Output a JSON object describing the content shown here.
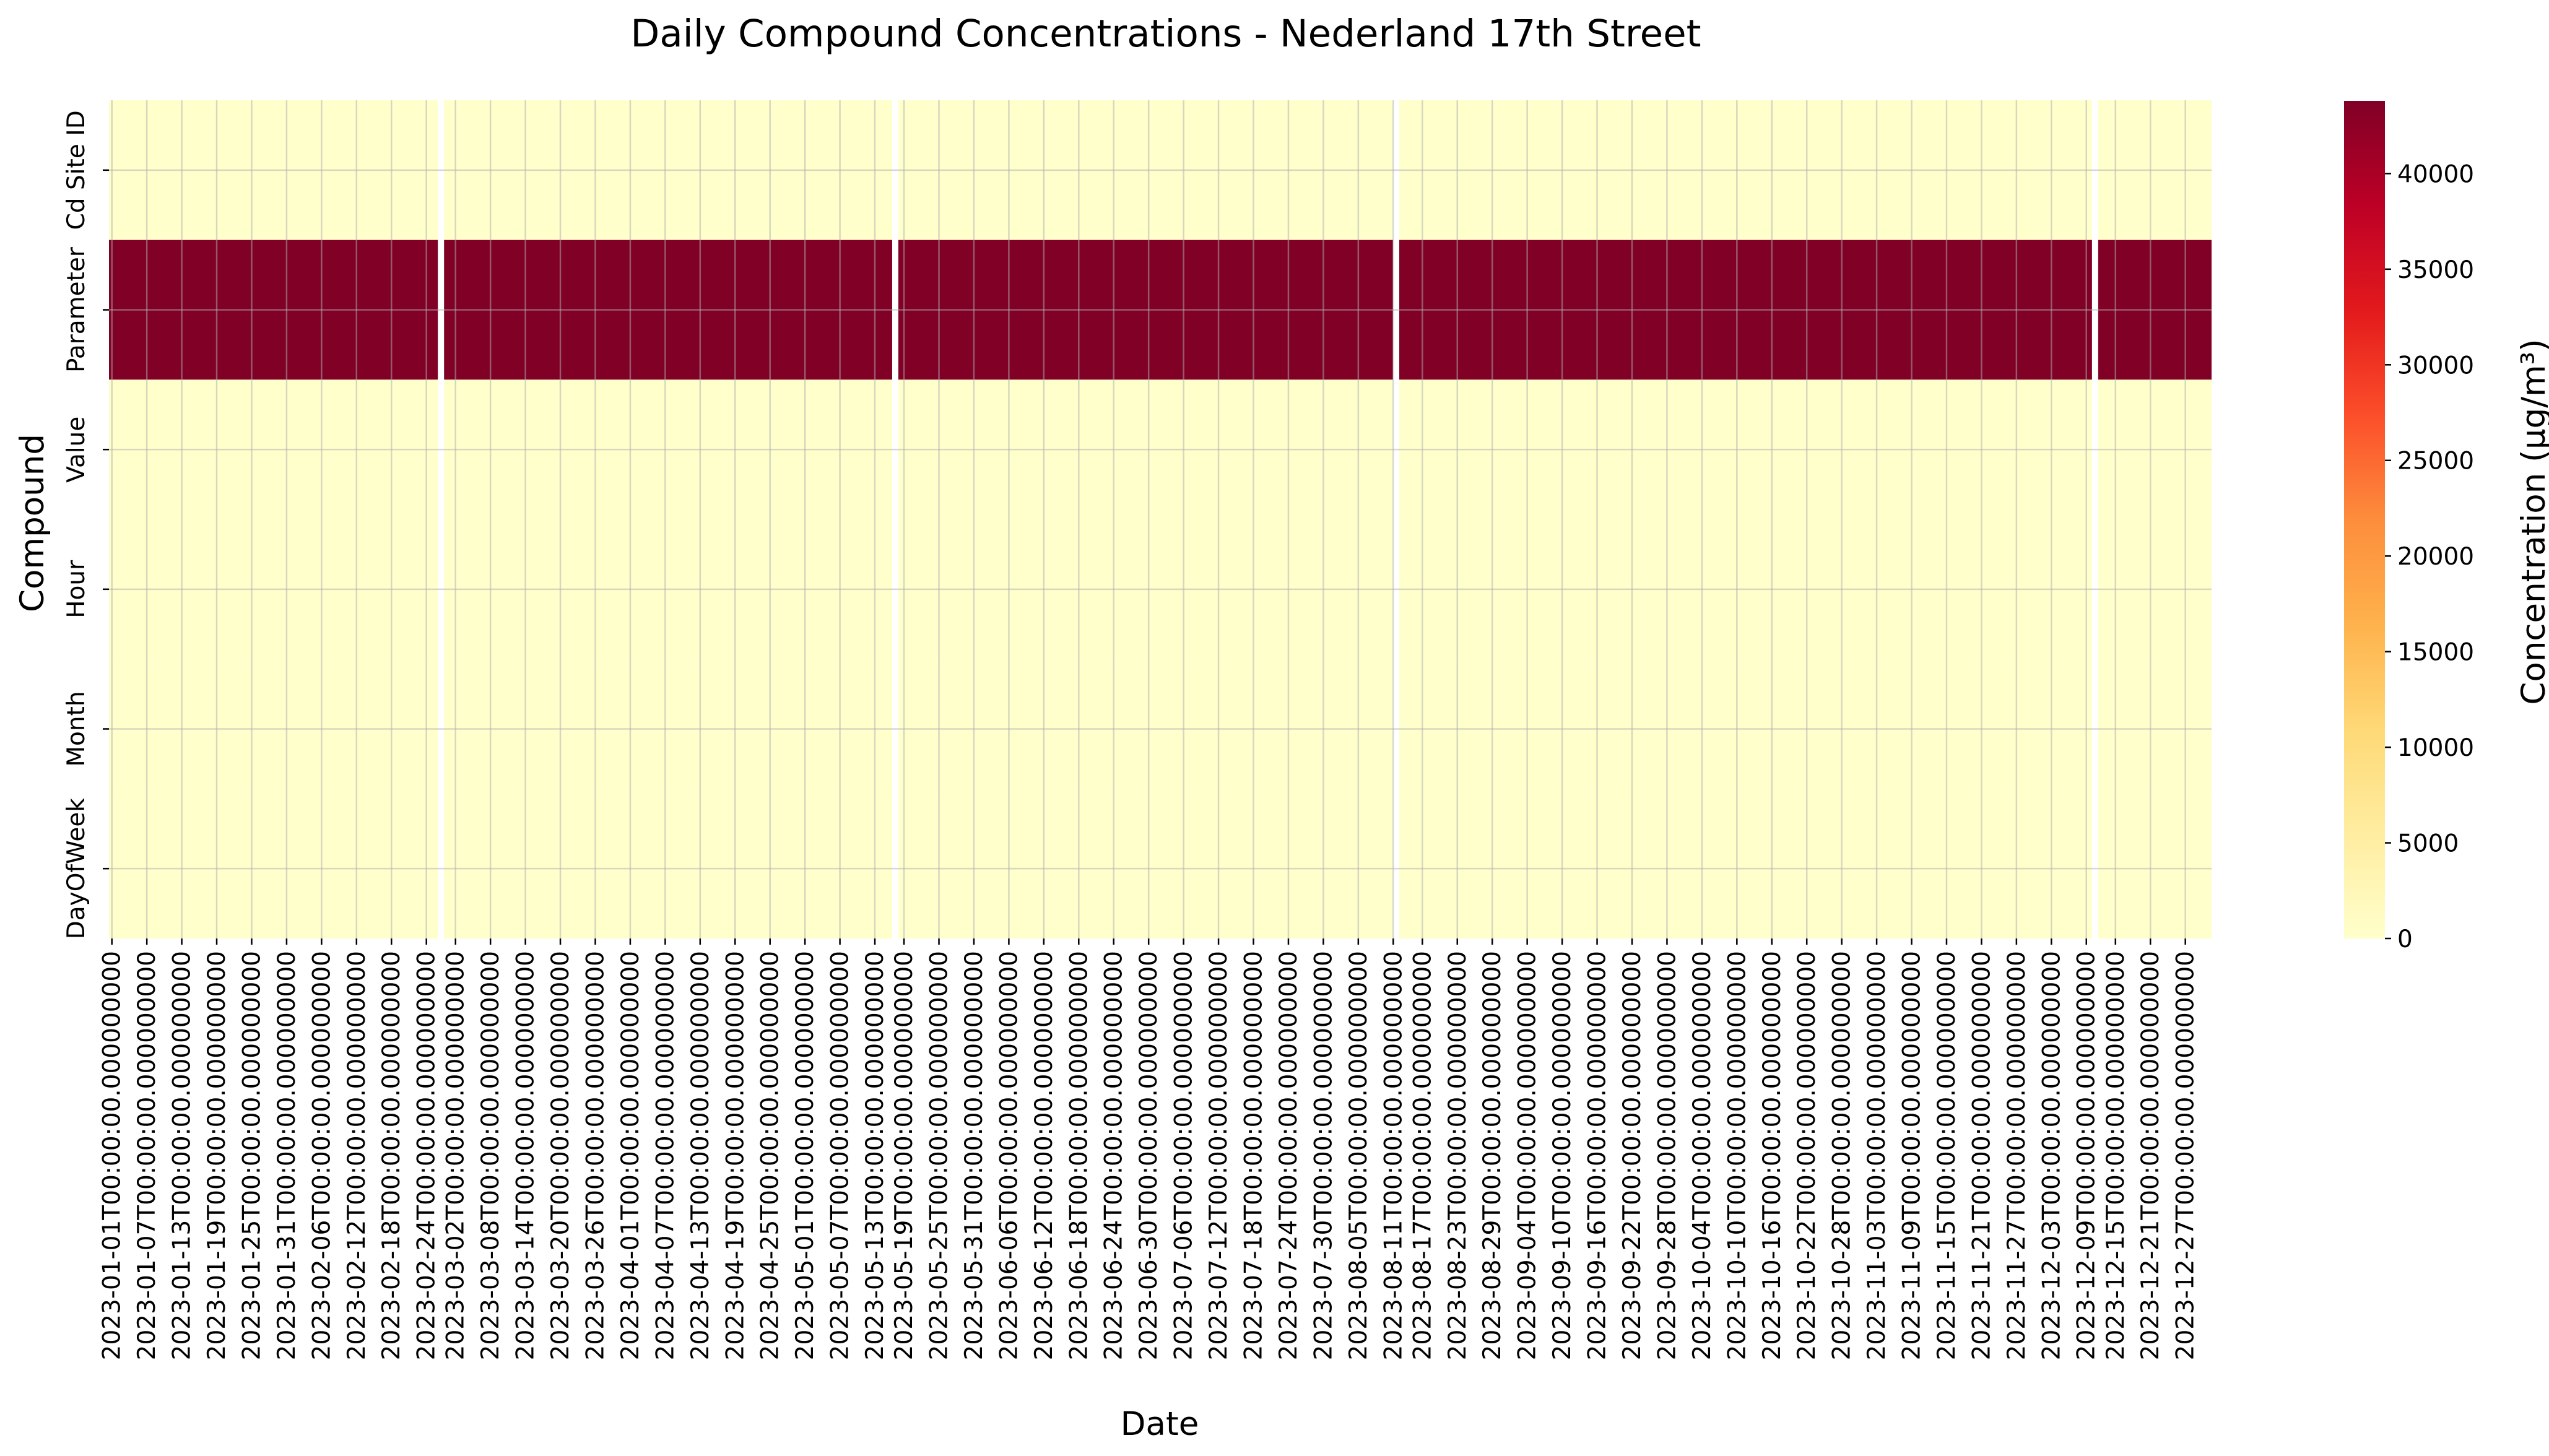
{
  "chart_data": {
    "type": "heatmap",
    "title": "Daily Compound Concentrations - Nederland 17th Street",
    "xlabel": "Date",
    "ylabel": "Compound",
    "rows": [
      "Cd Site ID",
      "Parameter",
      "Value",
      "Hour",
      "Month",
      "DayOfWeek"
    ],
    "x_tick_labels": [
      "2023-01-01T00:00:00.000000000",
      "2023-01-07T00:00:00.000000000",
      "2023-01-13T00:00:00.000000000",
      "2023-01-19T00:00:00.000000000",
      "2023-01-25T00:00:00.000000000",
      "2023-01-31T00:00:00.000000000",
      "2023-02-06T00:00:00.000000000",
      "2023-02-12T00:00:00.000000000",
      "2023-02-18T00:00:00.000000000",
      "2023-02-24T00:00:00.000000000",
      "2023-03-02T00:00:00.000000000",
      "2023-03-08T00:00:00.000000000",
      "2023-03-14T00:00:00.000000000",
      "2023-03-20T00:00:00.000000000",
      "2023-03-26T00:00:00.000000000",
      "2023-04-01T00:00:00.000000000",
      "2023-04-07T00:00:00.000000000",
      "2023-04-13T00:00:00.000000000",
      "2023-04-19T00:00:00.000000000",
      "2023-04-25T00:00:00.000000000",
      "2023-05-01T00:00:00.000000000",
      "2023-05-07T00:00:00.000000000",
      "2023-05-13T00:00:00.000000000",
      "2023-05-19T00:00:00.000000000",
      "2023-05-25T00:00:00.000000000",
      "2023-05-31T00:00:00.000000000",
      "2023-06-06T00:00:00.000000000",
      "2023-06-12T00:00:00.000000000",
      "2023-06-18T00:00:00.000000000",
      "2023-06-24T00:00:00.000000000",
      "2023-06-30T00:00:00.000000000",
      "2023-07-06T00:00:00.000000000",
      "2023-07-12T00:00:00.000000000",
      "2023-07-18T00:00:00.000000000",
      "2023-07-24T00:00:00.000000000",
      "2023-07-30T00:00:00.000000000",
      "2023-08-05T00:00:00.000000000",
      "2023-08-11T00:00:00.000000000",
      "2023-08-17T00:00:00.000000000",
      "2023-08-23T00:00:00.000000000",
      "2023-08-29T00:00:00.000000000",
      "2023-09-04T00:00:00.000000000",
      "2023-09-10T00:00:00.000000000",
      "2023-09-16T00:00:00.000000000",
      "2023-09-22T00:00:00.000000000",
      "2023-09-28T00:00:00.000000000",
      "2023-10-04T00:00:00.000000000",
      "2023-10-10T00:00:00.000000000",
      "2023-10-16T00:00:00.000000000",
      "2023-10-22T00:00:00.000000000",
      "2023-10-28T00:00:00.000000000",
      "2023-11-03T00:00:00.000000000",
      "2023-11-09T00:00:00.000000000",
      "2023-11-15T00:00:00.000000000",
      "2023-11-21T00:00:00.000000000",
      "2023-11-27T00:00:00.000000000",
      "2023-12-03T00:00:00.000000000",
      "2023-12-09T00:00:00.000000000",
      "2023-12-15T00:00:00.000000000",
      "2023-12-21T00:00:00.000000000",
      "2023-12-27T00:00:00.000000000"
    ],
    "x_start_date": "2023-01-01",
    "x_tick_every_days": 6,
    "num_days": 365,
    "missing_dates": [
      "2023-02-27",
      "2023-05-17",
      "2023-08-12",
      "2023-12-11"
    ],
    "values": {
      "Cd Site ID": 0,
      "Parameter": 43800,
      "Value": 0,
      "Hour": 0,
      "Month": 0,
      "DayOfWeek": 0
    },
    "colorbar": {
      "label": "Concentration (µg/m³)",
      "range": [
        0,
        43800
      ],
      "ticks": [
        0,
        5000,
        10000,
        15000,
        20000,
        25000,
        30000,
        35000,
        40000
      ],
      "colormap": "YlOrRd",
      "colors": [
        "#ffffcc",
        "#ffeda0",
        "#fed976",
        "#feb24c",
        "#fd8d3c",
        "#fc4e2a",
        "#e31a1c",
        "#bd0026",
        "#800026"
      ]
    },
    "grid": true
  }
}
